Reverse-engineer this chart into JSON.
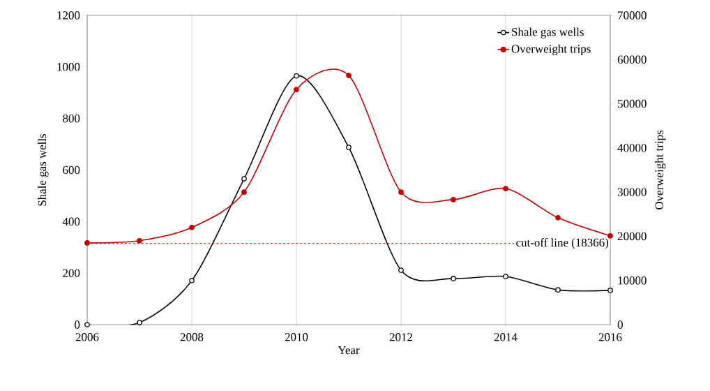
{
  "chart_data": {
    "type": "line",
    "xlabel": "Year",
    "ylabel": "Shale gas wells",
    "y2label": "Overweight trips",
    "x": [
      2006,
      2007,
      2008,
      2009,
      2010,
      2011,
      2012,
      2013,
      2014,
      2015,
      2016
    ],
    "series": [
      {
        "name": "Shale gas wells",
        "color": "#000000",
        "axis": "y",
        "values": [
          0,
          8,
          171,
          566,
          965,
          688,
          211,
          179,
          187,
          135,
          133
        ]
      },
      {
        "name": "Overweight trips",
        "color": "#c00000",
        "axis": "y2",
        "values": [
          18500,
          19000,
          22000,
          30000,
          53200,
          56400,
          30000,
          28300,
          30800,
          24200,
          20100
        ]
      }
    ],
    "xlim": [
      2006,
      2016
    ],
    "xticks": [
      2006,
      2008,
      2010,
      2012,
      2014,
      2016
    ],
    "ylim": [
      0,
      1200
    ],
    "yticks": [
      0,
      200,
      400,
      600,
      800,
      1000,
      1200
    ],
    "y2lim": [
      0,
      70000
    ],
    "y2ticks": [
      0,
      10000,
      20000,
      30000,
      40000,
      50000,
      60000,
      70000
    ],
    "ref_lines": [
      {
        "axis": "y2",
        "value": 18366,
        "label": "cut-off line (18366)",
        "color": "#c00000",
        "line_style": "dashed"
      }
    ],
    "grid": "x",
    "legend": "top right",
    "marker": "circle"
  }
}
